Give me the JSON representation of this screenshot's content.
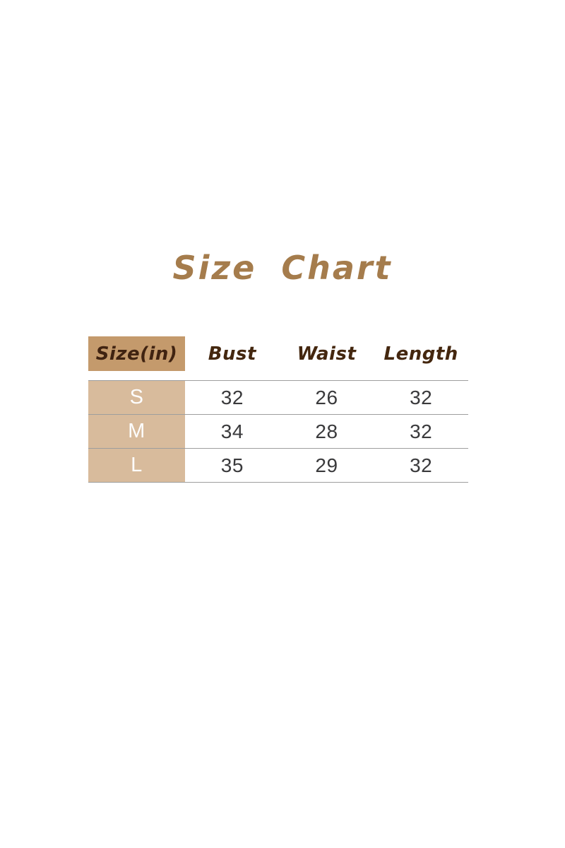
{
  "title": "Size Chart",
  "colors": {
    "title_text": "#a57c4c",
    "header_cell_bg": "#c49a6c",
    "header_text": "#44270f",
    "size_column_bg": "#d8bb9c",
    "size_column_text": "#fdfdfd",
    "value_text": "#3a3a3c",
    "separator_line": "#9e9e9e",
    "page_bg": "#ffffff"
  },
  "table": {
    "headers": [
      {
        "label": "Size(in)"
      },
      {
        "label": "Bust"
      },
      {
        "label": "Waist"
      },
      {
        "label": "Length"
      }
    ],
    "rows": [
      {
        "size": "S",
        "bust": "32",
        "waist": "26",
        "length": "32"
      },
      {
        "size": "M",
        "bust": "34",
        "waist": "28",
        "length": "32"
      },
      {
        "size": "L",
        "bust": "35",
        "waist": "29",
        "length": "32"
      }
    ]
  },
  "chart_data": {
    "type": "table",
    "title": "Size Chart",
    "columns": [
      "Size(in)",
      "Bust",
      "Waist",
      "Length"
    ],
    "rows": [
      [
        "S",
        32,
        26,
        32
      ],
      [
        "M",
        34,
        28,
        32
      ],
      [
        "L",
        35,
        29,
        32
      ]
    ]
  }
}
